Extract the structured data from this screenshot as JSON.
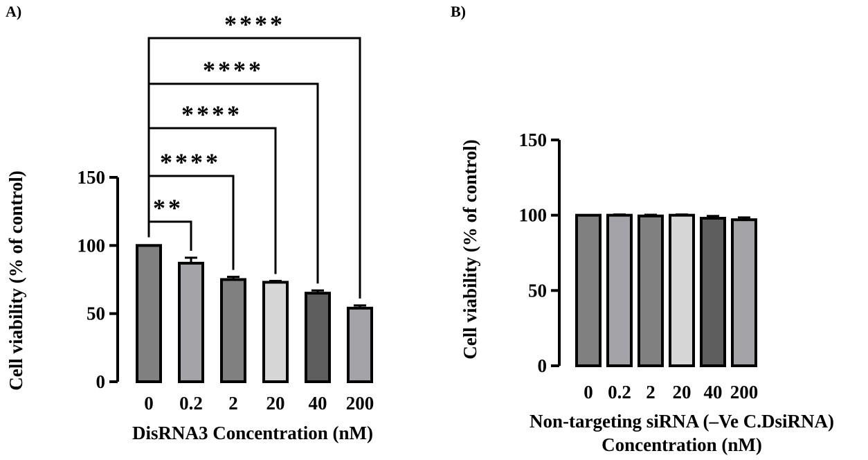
{
  "chart_data": [
    {
      "panel_label": "A)",
      "type": "bar",
      "categories": [
        "0",
        "0.2",
        "2",
        "20",
        "40",
        "200"
      ],
      "values": [
        100,
        87,
        75,
        73,
        65,
        54
      ],
      "errors": [
        0,
        4,
        2,
        1,
        2,
        2
      ],
      "bar_colors": [
        "#808080",
        "#a4a4a8",
        "#808080",
        "#d6d6d6",
        "#5e5e5e",
        "#a4a4a8"
      ],
      "xlabel": "DisRNA3 Concentration (nM)",
      "ylabel": "Cell viability (% of control)",
      "ylim": [
        0,
        150
      ],
      "yticks": [
        0,
        50,
        100,
        150
      ],
      "significance": [
        {
          "from": "0",
          "to": "0.2",
          "label": "**"
        },
        {
          "from": "0",
          "to": "2",
          "label": "****"
        },
        {
          "from": "0",
          "to": "20",
          "label": "****"
        },
        {
          "from": "0",
          "to": "40",
          "label": "****"
        },
        {
          "from": "0",
          "to": "200",
          "label": "****"
        }
      ]
    },
    {
      "panel_label": "B)",
      "type": "bar",
      "categories": [
        "0",
        "0.2",
        "2",
        "20",
        "40",
        "200"
      ],
      "values": [
        100,
        100,
        99.5,
        100,
        98,
        97
      ],
      "errors": [
        0,
        0.5,
        0.8,
        0.5,
        1.5,
        1.5
      ],
      "bar_colors": [
        "#808080",
        "#a4a4a8",
        "#808080",
        "#d6d6d6",
        "#5e5e5e",
        "#a4a4a8"
      ],
      "xlabel_line1": "Non-targeting siRNA (–Ve C.DsiRNA)",
      "xlabel_line2": "Concentration (nM)",
      "ylabel": "Cell viability (% of control)",
      "ylim": [
        0,
        150
      ],
      "yticks": [
        0,
        50,
        100,
        150
      ]
    }
  ]
}
